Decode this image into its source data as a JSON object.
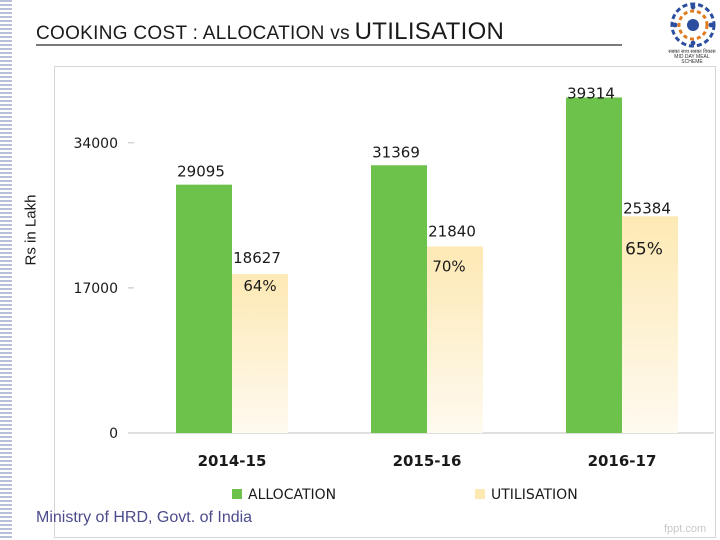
{
  "title_main": "COOKING COST : ALLOCATION vs",
  "title_big": "UTILISATION",
  "logo_text": "सबका साथ सबका विकास  MID DAY MEAL SCHEME",
  "footer": "Ministry of HRD, Govt. of India",
  "watermark": "fppt.com",
  "chart_data": {
    "type": "bar",
    "title": "COOKING COST : ALLOCATION vs UTILISATION",
    "xlabel": "",
    "ylabel": "Rs in Lakh",
    "categories": [
      "2014-15",
      "2015-16",
      "2016-17"
    ],
    "yticks": [
      0,
      17000,
      34000
    ],
    "ytick_labels": [
      "0",
      "17000",
      "34000"
    ],
    "ylim": [
      0,
      43000
    ],
    "series": [
      {
        "name": "ALLOCATION",
        "values": [
          29095,
          31369,
          39314
        ],
        "color": "#6cc24a"
      },
      {
        "name": "UTILISATION",
        "values": [
          18627,
          21840,
          25384
        ],
        "color": "#fde9b4"
      }
    ],
    "percent_labels": [
      "64%",
      "70%",
      "65%"
    ],
    "legend": "bottom",
    "grid": false
  }
}
